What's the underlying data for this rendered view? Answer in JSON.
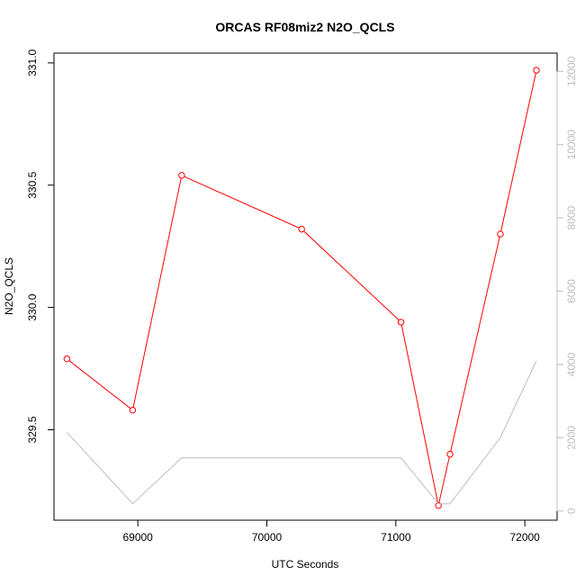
{
  "chart_data": {
    "type": "line",
    "title": "ORCAS RF08miz2 N2O_QCLS",
    "xlabel": "UTC Seconds",
    "ylabel": "N2O_QCLS",
    "xlim": [
      68350,
      72250
    ],
    "ylim": [
      329.13,
      331.04
    ],
    "y2lim": [
      -250,
      12500
    ],
    "x_ticks": [
      69000,
      70000,
      71000,
      72000
    ],
    "y_ticks": [
      329.5,
      330.0,
      330.5,
      331.0
    ],
    "y2_ticks": [
      0,
      2000,
      4000,
      6000,
      8000,
      10000,
      12000
    ],
    "series": [
      {
        "axis": "left",
        "color": "#ff0000",
        "markers": true,
        "x": [
          68450,
          68960,
          69340,
          70270,
          71040,
          71330,
          71420,
          71810,
          72090
        ],
        "y": [
          329.79,
          329.58,
          330.54,
          330.32,
          329.94,
          329.19,
          329.4,
          330.3,
          330.97
        ]
      },
      {
        "axis": "right",
        "color": "#bebebe",
        "markers": false,
        "x": [
          68450,
          68960,
          69340,
          70270,
          71040,
          71330,
          71420,
          71810,
          72090
        ],
        "y": [
          2150,
          200,
          1450,
          1450,
          1450,
          200,
          200,
          2000,
          4100
        ]
      }
    ],
    "grid": false,
    "legend": "none"
  }
}
